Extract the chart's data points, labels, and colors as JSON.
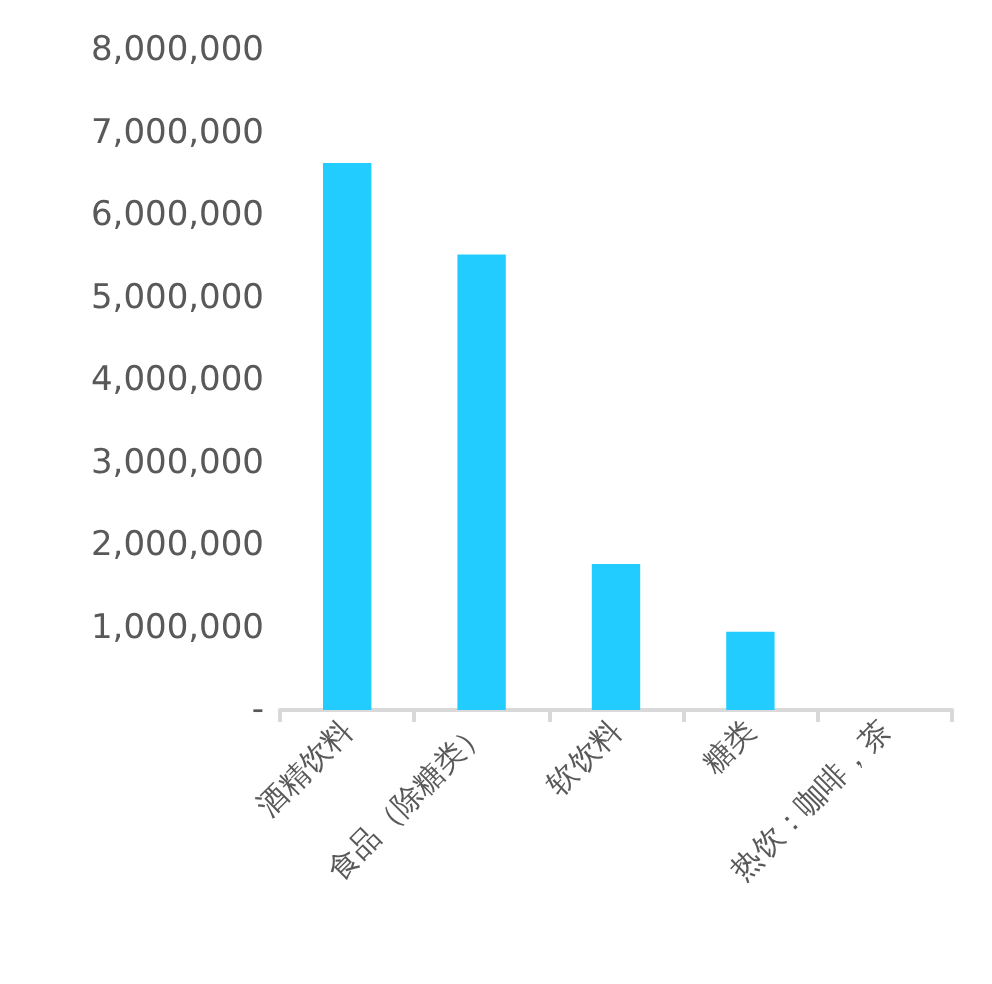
{
  "chart_data": {
    "type": "bar",
    "categories": [
      "酒精饮料",
      "食品（除糖类）",
      "软饮料",
      "糖类",
      "热饮：咖啡，茶"
    ],
    "values": [
      6630000,
      5520000,
      1770000,
      950000,
      0
    ],
    "color": "#22ccff",
    "ylim": [
      0,
      8000000
    ],
    "yticks": [
      {
        "value": 0,
        "label": "-"
      },
      {
        "value": 1000000,
        "label": "1,000,000"
      },
      {
        "value": 2000000,
        "label": "2,000,000"
      },
      {
        "value": 3000000,
        "label": "3,000,000"
      },
      {
        "value": 4000000,
        "label": "4,000,000"
      },
      {
        "value": 5000000,
        "label": "5,000,000"
      },
      {
        "value": 6000000,
        "label": "6,000,000"
      },
      {
        "value": 7000000,
        "label": "7,000,000"
      },
      {
        "value": 8000000,
        "label": "8,000,000"
      }
    ],
    "grid": false
  }
}
